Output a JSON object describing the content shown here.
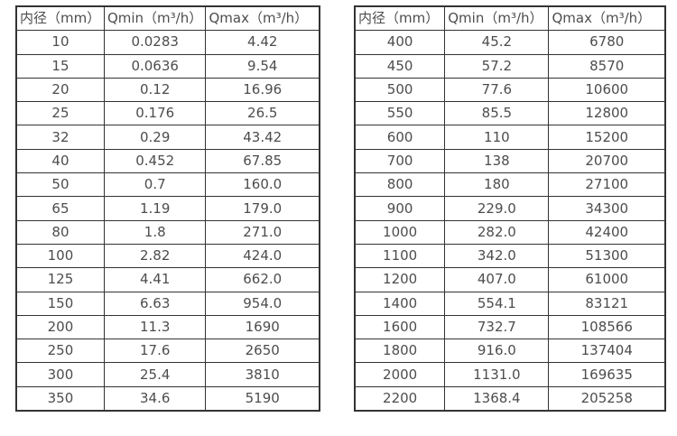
{
  "colors": {
    "border": "#333333",
    "text": "#4d4d4d",
    "background": "#ffffff"
  },
  "table_left": {
    "name": "flow-spec-small-diameters",
    "headers": [
      "内径（mm）",
      "Qmin（m³/h）",
      "Qmax（m³/h）"
    ],
    "rows": [
      [
        "10",
        "0.0283",
        "4.42"
      ],
      [
        "15",
        "0.0636",
        "9.54"
      ],
      [
        "20",
        "0.12",
        "16.96"
      ],
      [
        "25",
        "0.176",
        "26.5"
      ],
      [
        "32",
        "0.29",
        "43.42"
      ],
      [
        "40",
        "0.452",
        "67.85"
      ],
      [
        "50",
        "0.7",
        "160.0"
      ],
      [
        "65",
        "1.19",
        "179.0"
      ],
      [
        "80",
        "1.8",
        "271.0"
      ],
      [
        "100",
        "2.82",
        "424.0"
      ],
      [
        "125",
        "4.41",
        "662.0"
      ],
      [
        "150",
        "6.63",
        "954.0"
      ],
      [
        "200",
        "11.3",
        "1690"
      ],
      [
        "250",
        "17.6",
        "2650"
      ],
      [
        "300",
        "25.4",
        "3810"
      ],
      [
        "350",
        "34.6",
        "5190"
      ]
    ]
  },
  "table_right": {
    "name": "flow-spec-large-diameters",
    "headers": [
      "内径（mm）",
      "Qmin（m³/h）",
      "Qmax（m³/h）"
    ],
    "rows": [
      [
        "400",
        "45.2",
        "6780"
      ],
      [
        "450",
        "57.2",
        "8570"
      ],
      [
        "500",
        "77.6",
        "10600"
      ],
      [
        "550",
        "85.5",
        "12800"
      ],
      [
        "600",
        "110",
        "15200"
      ],
      [
        "700",
        "138",
        "20700"
      ],
      [
        "800",
        "180",
        "27100"
      ],
      [
        "900",
        "229.0",
        "34300"
      ],
      [
        "1000",
        "282.0",
        "42400"
      ],
      [
        "1100",
        "342.0",
        "51300"
      ],
      [
        "1200",
        "407.0",
        "61000"
      ],
      [
        "1400",
        "554.1",
        "83121"
      ],
      [
        "1600",
        "732.7",
        "108566"
      ],
      [
        "1800",
        "916.0",
        "137404"
      ],
      [
        "2000",
        "1131.0",
        "169635"
      ],
      [
        "2200",
        "1368.4",
        "205258"
      ]
    ]
  }
}
